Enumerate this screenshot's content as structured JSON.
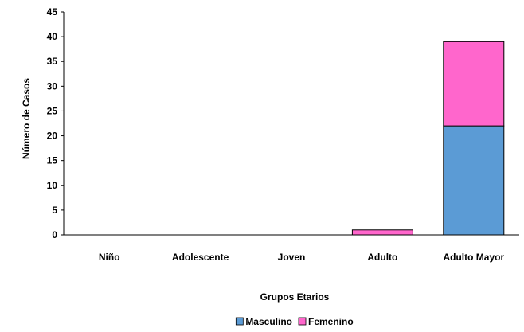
{
  "chart_data": {
    "type": "bar",
    "stacked": true,
    "categories": [
      "Niño",
      "Adolescente",
      "Joven",
      "Adulto",
      "Adulto Mayor"
    ],
    "series": [
      {
        "name": "Masculino",
        "values": [
          0,
          0,
          0,
          0,
          22
        ],
        "color": "#5b9bd5"
      },
      {
        "name": "Femenino",
        "values": [
          0,
          0,
          0,
          1,
          17
        ],
        "color": "#ff66cc"
      }
    ],
    "xlabel": "Grupos Etarios",
    "ylabel": "Número de Casos",
    "ylim": [
      0,
      45
    ],
    "yticks": [
      0,
      5,
      10,
      15,
      20,
      25,
      30,
      35,
      40,
      45
    ],
    "grid": false,
    "legend_position": "bottom"
  }
}
